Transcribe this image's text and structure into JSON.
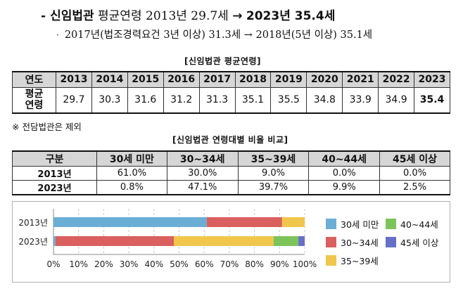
{
  "summary": {
    "dash": "-",
    "label": "신임법관",
    "prefix": "평균연령",
    "from": "2013년 29.7세",
    "arrow": "→",
    "to": "2023년 35.4세"
  },
  "detail": {
    "bullet": "·",
    "text_a": "2017년(법조경력요건 3년 이상) 31.3세",
    "arrow": "→",
    "text_b": "2018년(5년 이상) 35.1세"
  },
  "table1": {
    "caption": "[신임법관 평균연령]",
    "header_label": "연도",
    "years": [
      "2013",
      "2014",
      "2015",
      "2016",
      "2017",
      "2018",
      "2019",
      "2020",
      "2021",
      "2022",
      "2023"
    ],
    "row_label": "평균\n연령",
    "values": [
      "29.7",
      "30.3",
      "31.6",
      "31.2",
      "31.3",
      "35.1",
      "35.5",
      "34.8",
      "33.9",
      "34.9",
      "35.4"
    ]
  },
  "note": "※ 전담법관은 제외",
  "table2": {
    "caption": "[신임법관 연령대별 비율 비교]",
    "header_label": "구분",
    "columns": [
      "30세 미만",
      "30~34세",
      "35~39세",
      "40~44세",
      "45세 이상"
    ],
    "rows": [
      {
        "label": "2013년",
        "cells": [
          "61.0%",
          "30.0%",
          "9.0%",
          "0.0%",
          "0.0%"
        ]
      },
      {
        "label": "2023년",
        "cells": [
          "0.8%",
          "47.1%",
          "39.7%",
          "9.9%",
          "2.5%"
        ]
      }
    ]
  },
  "chart_data": {
    "type": "bar",
    "orientation": "horizontal",
    "stacked": true,
    "categories": [
      "2013년",
      "2023년"
    ],
    "series": [
      {
        "name": "30세 미만",
        "color": "#6aaed6",
        "values": [
          61.0,
          0.8
        ]
      },
      {
        "name": "30~34세",
        "color": "#d9605e",
        "values": [
          30.0,
          47.1
        ]
      },
      {
        "name": "35~39세",
        "color": "#f0c74c",
        "values": [
          9.0,
          39.7
        ]
      },
      {
        "name": "40~44세",
        "color": "#7cc45a",
        "values": [
          0.0,
          9.9
        ]
      },
      {
        "name": "45세 이상",
        "color": "#6670c8",
        "values": [
          0.0,
          2.5
        ]
      }
    ],
    "xlim": [
      0,
      100
    ],
    "xticks": [
      "0%",
      "10%",
      "20%",
      "30%",
      "40%",
      "50%",
      "60%",
      "70%",
      "80%",
      "90%",
      "100%"
    ],
    "grid": "vertical dashed",
    "legend": "right"
  }
}
